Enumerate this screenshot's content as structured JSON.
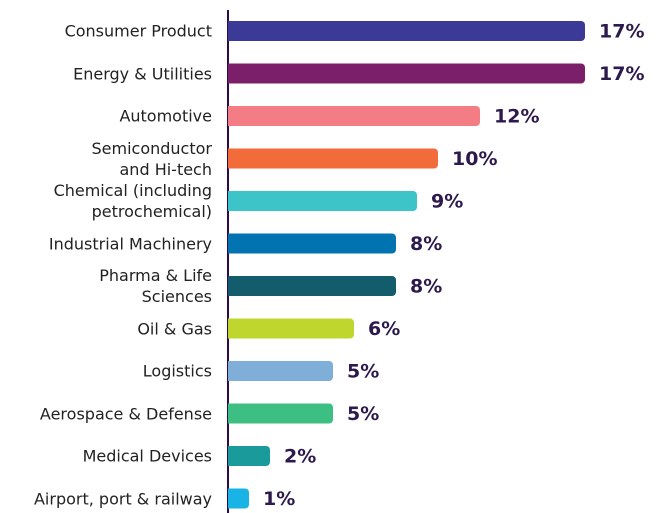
{
  "chart_data": {
    "type": "bar",
    "orientation": "horizontal",
    "categories": [
      "Consumer Product",
      "Energy & Utilities",
      "Automotive",
      "Semiconductor\nand Hi-tech",
      "Chemical (including\npetrochemical)",
      "Industrial Machinery",
      "Pharma & Life\nSciences",
      "Oil & Gas",
      "Logistics",
      "Aerospace & Defense",
      "Medical Devices",
      "Airport, port & railway"
    ],
    "values": [
      17,
      17,
      12,
      10,
      9,
      8,
      8,
      6,
      5,
      5,
      2,
      1
    ],
    "value_labels": [
      "17%",
      "17%",
      "12%",
      "10%",
      "9%",
      "8%",
      "8%",
      "6%",
      "5%",
      "5%",
      "2%",
      "1%"
    ],
    "colors": [
      "#3b3a96",
      "#7b1f6a",
      "#f47c85",
      "#f26b3a",
      "#3cc4c8",
      "#0073b0",
      "#135c6b",
      "#bfd62f",
      "#7fafd9",
      "#3dbf84",
      "#1a9a9a",
      "#1ab3e6"
    ]
  }
}
